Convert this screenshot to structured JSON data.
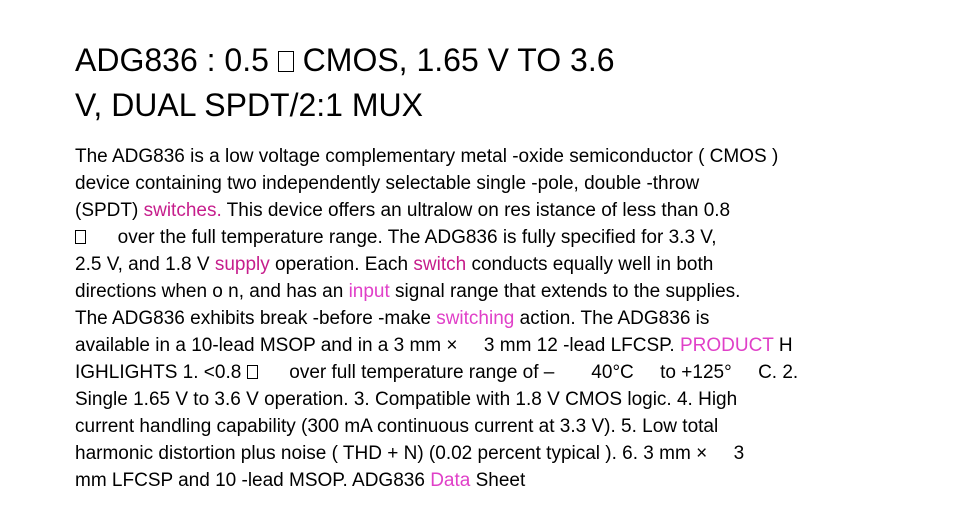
{
  "title": {
    "line1_a": "ADG836 : 0.5 ",
    "line1_b": "      CMOS, 1.65 V TO 3.6",
    "line2": "V, DUAL SPDT/2:1 MUX"
  },
  "body": {
    "l1": "The ADG836 is a low voltage complementary metal -oxide semiconductor ( CMOS )",
    "l2": "device containing two independently selectable single -pole, double -throw",
    "l3_a": "(SPDT) ",
    "l3_kw": "switches.",
    "l3_b": " This device offers an ultralow on res istance of less than 0.8",
    "l4_b": "      over the full temperature range. The ADG836 is fully specified for 3.3 V,",
    "l5_a": "2.5 V, and 1.8 V ",
    "l5_kw1": "supply",
    "l5_b": " operation. Each ",
    "l5_kw2": "switch",
    "l5_c": " conducts equally well in both",
    "l6_a": "directions when o n, and has an ",
    "l6_kw": "input",
    "l6_b": " signal range that extends to the supplies.",
    "l7_a": "The ADG836 exhibits break -before -make ",
    "l7_kw": "switching",
    "l7_b": " action. The ADG836 is",
    "l8_a": "available in a 10-lead MSOP and in a 3 mm ×     3 mm 12 -lead LFCSP. ",
    "l8_kw": "PRODUCT",
    "l8_b": " H",
    "l9_a": "IGHLIGHTS 1. <0.8 ",
    "l9_b": "      over full temperature range of –       40°C     to +125°     C. 2.",
    "l10": "Single 1.65 V to 3.6 V operation. 3. Compatible with 1.8 V CMOS logic. 4. High",
    "l11": "current handling capability (300 mA continuous current at 3.3 V). 5. Low total",
    "l12": "harmonic distortion plus noise ( THD + N) (0.02 percent typical ). 6. 3 mm ×     3",
    "l13_a": "mm LFCSP and 10 -lead MSOP. ADG836 ",
    "l13_kw": "Data",
    "l13_b": " Sheet"
  },
  "colors": {
    "text": "#000000",
    "keyword": "#c61e8c",
    "keyword_light": "#e040c8"
  },
  "icons": {
    "missing_glyph": "box-glyph-icon"
  }
}
